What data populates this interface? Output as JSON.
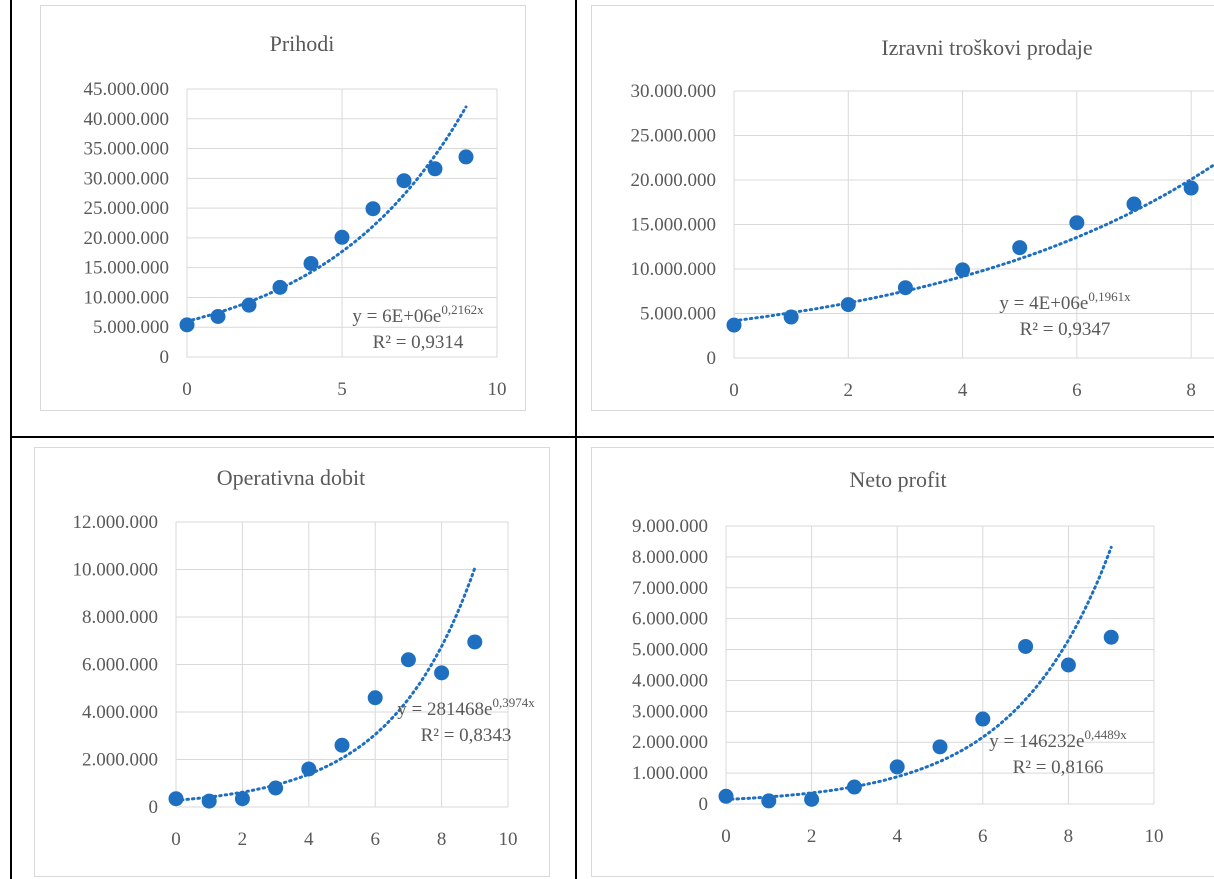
{
  "chart_data": [
    {
      "type": "scatter",
      "title": "Prihodi",
      "xlim": [
        0,
        10
      ],
      "ylim": [
        0,
        45000000
      ],
      "xticks": [
        0,
        5,
        10
      ],
      "yticks": [
        0,
        5000000,
        10000000,
        15000000,
        20000000,
        25000000,
        30000000,
        35000000,
        40000000,
        45000000
      ],
      "ytick_labels": [
        "0",
        "5.000.000",
        "10.000.000",
        "15.000.000",
        "20.000.000",
        "25.000.000",
        "30.000.000",
        "35.000.000",
        "40.000.000",
        "45.000.000"
      ],
      "xtick_labels": [
        "0",
        "5",
        "10"
      ],
      "grid": true,
      "color": "#1f6fc0",
      "x": [
        0,
        1,
        2,
        3,
        4,
        5,
        6,
        7,
        8,
        9
      ],
      "values": [
        5400000,
        6800000,
        8700000,
        11700000,
        15700000,
        20100000,
        24900000,
        29600000,
        31600000,
        33600000
      ],
      "trendline": {
        "type": "exponential",
        "a": 6000000,
        "b": 0.2162,
        "x_range": [
          0,
          9
        ]
      },
      "equation": {
        "prefix": "y = 6E+06e",
        "exponent": "0,2162x",
        "r2": "R² = 0,9314"
      }
    },
    {
      "type": "scatter",
      "title": "Izravni troškovi prodaje",
      "xlim": [
        0,
        8.4
      ],
      "ylim": [
        0,
        30000000
      ],
      "xticks": [
        0,
        2,
        4,
        6,
        8
      ],
      "yticks": [
        0,
        5000000,
        10000000,
        15000000,
        20000000,
        25000000,
        30000000
      ],
      "ytick_labels": [
        "0",
        "5.000.000",
        "10.000.000",
        "15.000.000",
        "20.000.000",
        "25.000.000",
        "30.000.000"
      ],
      "xtick_labels": [
        "0",
        "2",
        "4",
        "6",
        "8"
      ],
      "grid": true,
      "color": "#1f6fc0",
      "x": [
        0,
        1,
        2,
        3,
        4,
        5,
        6,
        7,
        8
      ],
      "values": [
        3700000,
        4600000,
        6000000,
        7900000,
        9900000,
        12400000,
        15200000,
        17300000,
        19100000
      ],
      "trendline": {
        "type": "exponential",
        "a": 4180000,
        "b": 0.1961,
        "x_range": [
          0,
          8.4
        ]
      },
      "equation": {
        "prefix": "y = 4E+06e",
        "exponent": "0,1961x",
        "r2": "R² = 0,9347"
      }
    },
    {
      "type": "scatter",
      "title": "Operativna dobit",
      "xlim": [
        0,
        10
      ],
      "ylim": [
        0,
        12000000
      ],
      "xticks": [
        0,
        2,
        4,
        6,
        8,
        10
      ],
      "yticks": [
        0,
        2000000,
        4000000,
        6000000,
        8000000,
        10000000,
        12000000
      ],
      "ytick_labels": [
        "0",
        "2.000.000",
        "4.000.000",
        "6.000.000",
        "8.000.000",
        "10.000.000",
        "12.000.000"
      ],
      "xtick_labels": [
        "0",
        "2",
        "4",
        "6",
        "8",
        "10"
      ],
      "grid": true,
      "color": "#1f6fc0",
      "x": [
        0,
        1,
        2,
        3,
        4,
        5,
        6,
        7,
        8,
        9
      ],
      "values": [
        350000,
        250000,
        350000,
        800000,
        1600000,
        2600000,
        4600000,
        6200000,
        5650000,
        6950000
      ],
      "trendline": {
        "type": "exponential",
        "a": 281468,
        "b": 0.3974,
        "x_range": [
          0,
          9
        ]
      },
      "equation": {
        "prefix": "y = 281468e",
        "exponent": "0,3974x",
        "r2": "R² = 0,8343"
      }
    },
    {
      "type": "scatter",
      "title": "Neto profit",
      "xlim": [
        0,
        10
      ],
      "ylim": [
        0,
        9000000
      ],
      "xticks": [
        0,
        2,
        4,
        6,
        8,
        10
      ],
      "yticks": [
        0,
        1000000,
        2000000,
        3000000,
        4000000,
        5000000,
        6000000,
        7000000,
        8000000,
        9000000
      ],
      "ytick_labels": [
        "0",
        "1.000.000",
        "2.000.000",
        "3.000.000",
        "4.000.000",
        "5.000.000",
        "6.000.000",
        "7.000.000",
        "8.000.000",
        "9.000.000"
      ],
      "xtick_labels": [
        "0",
        "2",
        "4",
        "6",
        "8",
        "10"
      ],
      "grid": true,
      "color": "#1f6fc0",
      "x": [
        0,
        1,
        2,
        3,
        4,
        5,
        6,
        7,
        8,
        9
      ],
      "values": [
        250000,
        100000,
        150000,
        550000,
        1200000,
        1850000,
        2750000,
        5100000,
        4500000,
        5400000
      ],
      "trendline": {
        "type": "exponential",
        "a": 146232,
        "b": 0.4489,
        "x_range": [
          0,
          9
        ]
      },
      "equation": {
        "prefix": "y = 146232e",
        "exponent": "0,4489x",
        "r2": "R² = 0,8166"
      }
    }
  ]
}
